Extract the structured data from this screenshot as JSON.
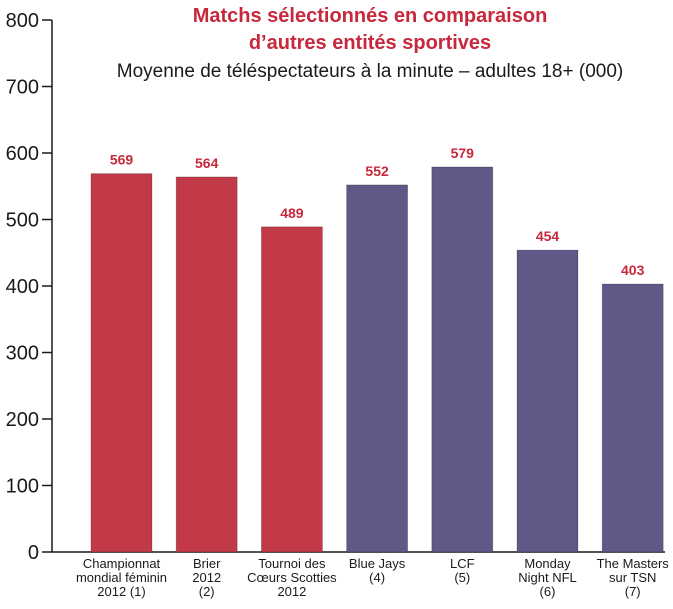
{
  "chart_data": {
    "type": "bar",
    "title_lines": [
      "Matchs sélectionnés en comparaison",
      "d’autres entités sportives"
    ],
    "subtitle": "Moyenne de téléspectateurs à la minute – adultes 18+ (000)",
    "categories": [
      [
        "Championnat",
        "mondial féminin",
        "2012 (1)"
      ],
      [
        "Brier",
        "2012",
        "(2)"
      ],
      [
        "Tournoi des",
        "Cœurs Scotties",
        "2012"
      ],
      [
        "Blue Jays",
        "(4)"
      ],
      [
        "LCF",
        "(5)"
      ],
      [
        "Monday",
        "Night NFL",
        "(6)"
      ],
      [
        "The Masters",
        "sur TSN",
        "(7)"
      ]
    ],
    "values": [
      569,
      564,
      489,
      552,
      579,
      454,
      403
    ],
    "value_labels": [
      "569",
      "564",
      "489",
      "552",
      "579",
      "454",
      "403"
    ],
    "bar_colors": [
      "#c23a48",
      "#c23a48",
      "#c23a48",
      "#5e5987",
      "#5e5987",
      "#5e5987",
      "#5e5987"
    ],
    "label_color": "#c8283c",
    "title_color": "#c8283c",
    "ylim": [
      0,
      800
    ],
    "yticks": [
      "0",
      "100",
      "200",
      "300",
      "400",
      "500",
      "600",
      "700",
      "800"
    ],
    "grid": false,
    "legend": "none"
  }
}
